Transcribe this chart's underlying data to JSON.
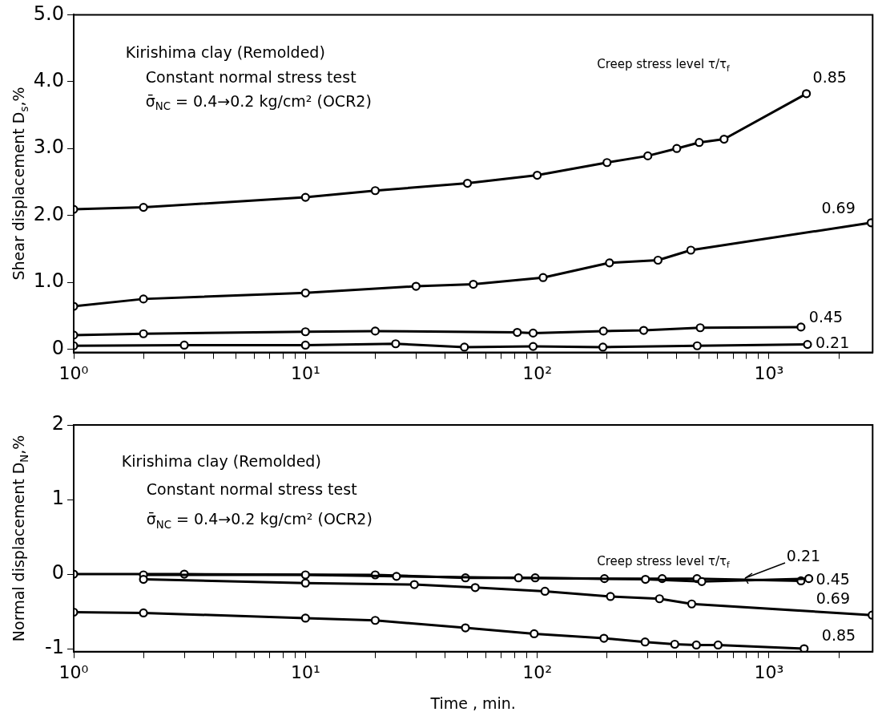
{
  "chart_data": [
    {
      "type": "line",
      "ylabel": "Shear displacement D$_{s}$,%",
      "log": "x",
      "marker": "circle",
      "line_style": "solid",
      "xlim": [
        1,
        2800
      ],
      "xticks": [
        {
          "value": 1,
          "label": "10⁰"
        },
        {
          "value": 2,
          "label": null
        },
        {
          "value": 3,
          "label": null
        },
        {
          "value": 4,
          "label": null
        },
        {
          "value": 5,
          "label": null
        },
        {
          "value": 6,
          "label": null
        },
        {
          "value": 7,
          "label": null
        },
        {
          "value": 8,
          "label": null
        },
        {
          "value": 9,
          "label": null
        },
        {
          "value": 10,
          "label": "10¹"
        },
        {
          "value": 20,
          "label": null
        },
        {
          "value": 30,
          "label": null
        },
        {
          "value": 40,
          "label": null
        },
        {
          "value": 50,
          "label": null
        },
        {
          "value": 60,
          "label": null
        },
        {
          "value": 70,
          "label": null
        },
        {
          "value": 80,
          "label": null
        },
        {
          "value": 90,
          "label": null
        },
        {
          "value": 100,
          "label": "10²"
        },
        {
          "value": 200,
          "label": null
        },
        {
          "value": 300,
          "label": null
        },
        {
          "value": 400,
          "label": null
        },
        {
          "value": 500,
          "label": null
        },
        {
          "value": 600,
          "label": null
        },
        {
          "value": 700,
          "label": null
        },
        {
          "value": 800,
          "label": null
        },
        {
          "value": 900,
          "label": null
        },
        {
          "value": 1000,
          "label": "10³"
        },
        {
          "value": 2000,
          "label": null
        }
      ],
      "ylim": [
        -0.05,
        5
      ],
      "yticks": [
        0,
        {
          "value": 1,
          "label": "1.0"
        },
        {
          "value": 2,
          "label": "2.0"
        },
        {
          "value": 3,
          "label": "3.0"
        },
        {
          "value": 4,
          "label": "4.0"
        },
        {
          "value": 5,
          "label": "5.0"
        }
      ],
      "annotations": [
        "Kirishima clay (Remolded)",
        "Constant normal stress test",
        "σ̄$_{NC}$ = 0.4→0.2 kg/cm² (OCR2)",
        "Creep stress level τ/τ$_{f}$"
      ],
      "series": [
        {
          "name": "0.85",
          "color": "#000000",
          "x": [
            1,
            2,
            10,
            20,
            50,
            100,
            200,
            300,
            400,
            500,
            640,
            1450
          ],
          "values": [
            2.09,
            2.12,
            2.27,
            2.37,
            2.48,
            2.6,
            2.79,
            2.89,
            3.0,
            3.09,
            3.14,
            3.82
          ]
        },
        {
          "name": "0.69",
          "color": "#000000",
          "x": [
            1,
            2,
            10,
            30,
            53,
            106,
            205,
            332,
            460,
            2760
          ],
          "values": [
            0.64,
            0.75,
            0.84,
            0.94,
            0.97,
            1.07,
            1.29,
            1.33,
            1.48,
            1.89
          ]
        },
        {
          "name": "0.45",
          "color": "#000000",
          "x": [
            1,
            2,
            10,
            20,
            82,
            96,
            193,
            288,
            505,
            1374
          ],
          "values": [
            0.21,
            0.23,
            0.26,
            0.27,
            0.25,
            0.24,
            0.27,
            0.28,
            0.32,
            0.33
          ]
        },
        {
          "name": "0.21",
          "color": "#000000",
          "x": [
            1,
            3,
            10,
            24.5,
            48.5,
            96,
            192,
            490,
            1466
          ],
          "values": [
            0.05,
            0.06,
            0.06,
            0.08,
            0.03,
            0.04,
            0.03,
            0.05,
            0.07
          ]
        }
      ]
    },
    {
      "type": "line",
      "xlabel": "Time , min.",
      "ylabel": "Normal displacement D$_{N}$,%",
      "log": "x",
      "marker": "circle",
      "line_style": "solid",
      "xlim": [
        1,
        2800
      ],
      "xticks": [
        {
          "value": 1,
          "label": "10⁰"
        },
        {
          "value": 2,
          "label": null
        },
        {
          "value": 3,
          "label": null
        },
        {
          "value": 4,
          "label": null
        },
        {
          "value": 5,
          "label": null
        },
        {
          "value": 6,
          "label": null
        },
        {
          "value": 7,
          "label": null
        },
        {
          "value": 8,
          "label": null
        },
        {
          "value": 9,
          "label": null
        },
        {
          "value": 10,
          "label": "10¹"
        },
        {
          "value": 20,
          "label": null
        },
        {
          "value": 30,
          "label": null
        },
        {
          "value": 40,
          "label": null
        },
        {
          "value": 50,
          "label": null
        },
        {
          "value": 60,
          "label": null
        },
        {
          "value": 70,
          "label": null
        },
        {
          "value": 80,
          "label": null
        },
        {
          "value": 90,
          "label": null
        },
        {
          "value": 100,
          "label": "10²"
        },
        {
          "value": 200,
          "label": null
        },
        {
          "value": 300,
          "label": null
        },
        {
          "value": 400,
          "label": null
        },
        {
          "value": 500,
          "label": null
        },
        {
          "value": 600,
          "label": null
        },
        {
          "value": 700,
          "label": null
        },
        {
          "value": 800,
          "label": null
        },
        {
          "value": 900,
          "label": null
        },
        {
          "value": 1000,
          "label": "10³"
        },
        {
          "value": 2000,
          "label": null
        }
      ],
      "ylim": [
        -1.04,
        2
      ],
      "yticks": [
        -1,
        0,
        1,
        2
      ],
      "annotations": [
        "Kirishima clay (Remolded)",
        "Constant normal stress test",
        "σ̄$_{NC}$ = 0.4→0.2 kg/cm² (OCR2)",
        "Creep stress level τ/τ$_{f}$"
      ],
      "series": [
        {
          "name": "0.85",
          "color": "#000000",
          "x": [
            1,
            2,
            10,
            20,
            49,
            97,
            194,
            292,
            392,
            486,
            603,
            1418
          ],
          "values": [
            -0.51,
            -0.52,
            -0.59,
            -0.62,
            -0.72,
            -0.8,
            -0.86,
            -0.91,
            -0.94,
            -0.95,
            -0.95,
            -1.0
          ]
        },
        {
          "name": "0.69",
          "color": "#000000",
          "x": [
            2,
            10,
            29.5,
            54,
            108,
            207,
            337,
            464,
            2786
          ],
          "values": [
            -0.07,
            -0.12,
            -0.14,
            -0.18,
            -0.23,
            -0.3,
            -0.33,
            -0.4,
            -0.55
          ]
        },
        {
          "name": "0.45",
          "color": "#000000",
          "x": [
            2,
            10,
            24.7,
            83,
            293,
            513,
            1485
          ],
          "values": [
            -0.01,
            -0.01,
            -0.03,
            -0.05,
            -0.07,
            -0.1,
            -0.06
          ]
        },
        {
          "name": "0.21",
          "color": "#000000",
          "x": [
            1,
            3,
            20,
            49,
            98,
            195,
            346,
            489,
            1374
          ],
          "values": [
            0.0,
            0.0,
            -0.01,
            -0.05,
            -0.05,
            -0.06,
            -0.06,
            -0.06,
            -0.09
          ]
        }
      ]
    }
  ]
}
